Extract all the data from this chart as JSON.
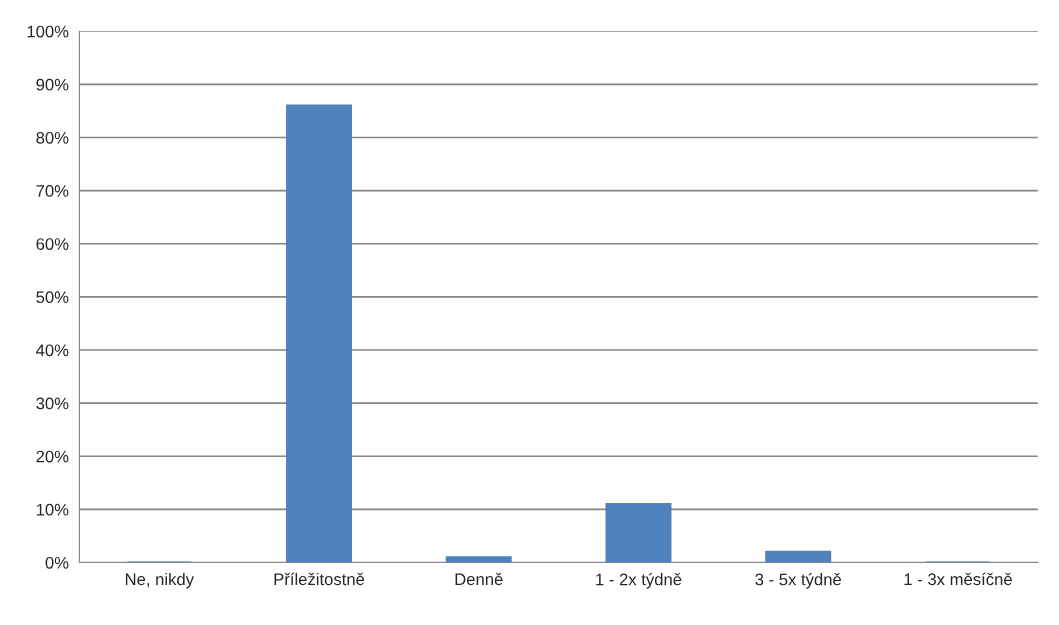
{
  "chart_data": {
    "type": "bar",
    "categories": [
      "Ne, nikdy",
      "Příležitostně",
      "Denně",
      "1 - 2x týdně",
      "3 - 5x týdně",
      "1 - 3x měsíčně"
    ],
    "values": [
      0,
      86,
      1,
      11,
      2,
      0
    ],
    "color": "#4f81bd",
    "ylim": [
      0,
      100
    ],
    "yticks": [
      {
        "value": 0,
        "label": "0%"
      },
      {
        "value": 10,
        "label": "10%"
      },
      {
        "value": 20,
        "label": "20%"
      },
      {
        "value": 30,
        "label": "30%"
      },
      {
        "value": 40,
        "label": "40%"
      },
      {
        "value": 50,
        "label": "50%"
      },
      {
        "value": 60,
        "label": "60%"
      },
      {
        "value": 70,
        "label": "70%"
      },
      {
        "value": 80,
        "label": "80%"
      },
      {
        "value": 90,
        "label": "90%"
      },
      {
        "value": 100,
        "label": "100%"
      }
    ],
    "grid": "y"
  }
}
